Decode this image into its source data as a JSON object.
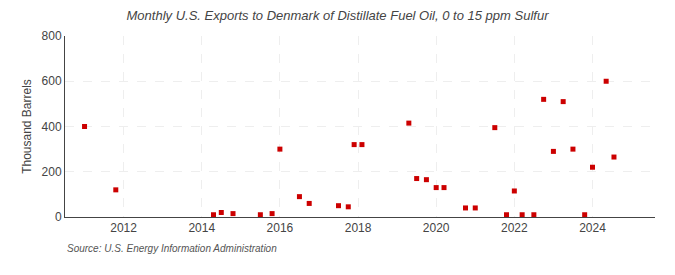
{
  "chart_data": {
    "type": "scatter",
    "title": "Monthly U.S. Exports to Denmark of Distillate Fuel Oil, 0 to 15 ppm Sulfur",
    "y_label": "Thousand Barrels",
    "annotations": [
      "Source: U.S. Energy Information Administration"
    ],
    "x": [
      2011.0,
      2011.8,
      2014.3,
      2014.5,
      2014.8,
      2015.5,
      2015.8,
      2016.0,
      2016.5,
      2016.75,
      2017.5,
      2017.75,
      2017.9,
      2018.1,
      2019.3,
      2019.5,
      2019.75,
      2020.0,
      2020.2,
      2020.75,
      2021.0,
      2021.5,
      2021.8,
      2022.0,
      2022.2,
      2022.5,
      2022.75,
      2023.0,
      2023.25,
      2023.5,
      2023.8,
      2024.0,
      2024.35,
      2024.55
    ],
    "values": [
      400,
      120,
      10,
      20,
      15,
      10,
      15,
      300,
      90,
      60,
      50,
      45,
      320,
      320,
      415,
      170,
      165,
      130,
      130,
      40,
      40,
      395,
      10,
      115,
      10,
      10,
      520,
      290,
      510,
      300,
      10,
      220,
      600,
      265
    ],
    "color": "#cc0000",
    "marker": "square",
    "xlim": [
      2010.5,
      2025.6
    ],
    "ylim": [
      0,
      800
    ],
    "xticks": [
      2012,
      2014,
      2016,
      2018,
      2020,
      2022,
      2024
    ],
    "yticks": [
      0,
      200,
      400,
      600,
      800
    ],
    "grid": true
  }
}
